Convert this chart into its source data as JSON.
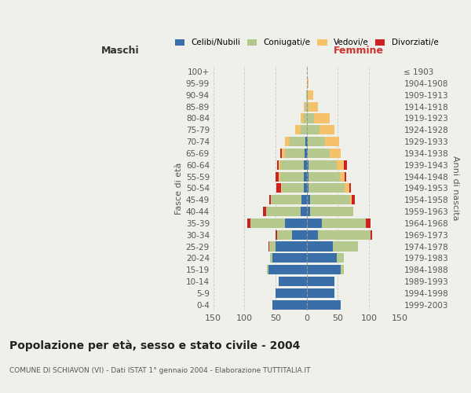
{
  "age_groups": [
    "0-4",
    "5-9",
    "10-14",
    "15-19",
    "20-24",
    "25-29",
    "30-34",
    "35-39",
    "40-44",
    "45-49",
    "50-54",
    "55-59",
    "60-64",
    "65-69",
    "70-74",
    "75-79",
    "80-84",
    "85-89",
    "90-94",
    "95-99",
    "100+"
  ],
  "birth_years": [
    "1999-2003",
    "1994-1998",
    "1989-1993",
    "1984-1988",
    "1979-1983",
    "1974-1978",
    "1969-1973",
    "1964-1968",
    "1959-1963",
    "1954-1958",
    "1949-1953",
    "1944-1948",
    "1939-1943",
    "1934-1938",
    "1929-1933",
    "1924-1928",
    "1919-1923",
    "1914-1918",
    "1909-1913",
    "1904-1908",
    "≤ 1903"
  ],
  "maschi": {
    "celibi": [
      55,
      50,
      45,
      62,
      55,
      50,
      23,
      35,
      10,
      8,
      5,
      5,
      4,
      3,
      2,
      0,
      0,
      0,
      0,
      0,
      0
    ],
    "coniugati": [
      0,
      0,
      0,
      2,
      4,
      10,
      25,
      55,
      55,
      50,
      35,
      38,
      38,
      32,
      25,
      10,
      5,
      2,
      1,
      0,
      0
    ],
    "vedovi": [
      0,
      0,
      0,
      0,
      0,
      0,
      0,
      0,
      0,
      0,
      1,
      2,
      3,
      5,
      8,
      8,
      5,
      2,
      0,
      0,
      0
    ],
    "divorziati": [
      0,
      0,
      0,
      0,
      0,
      1,
      2,
      5,
      5,
      2,
      8,
      5,
      2,
      3,
      0,
      0,
      0,
      0,
      0,
      0,
      0
    ]
  },
  "femmine": {
    "nubili": [
      55,
      45,
      45,
      55,
      48,
      42,
      18,
      25,
      5,
      5,
      3,
      3,
      3,
      2,
      2,
      0,
      0,
      0,
      0,
      0,
      0
    ],
    "coniugate": [
      0,
      0,
      0,
      5,
      12,
      40,
      85,
      70,
      70,
      65,
      58,
      50,
      45,
      35,
      28,
      20,
      12,
      3,
      2,
      1,
      0
    ],
    "vedove": [
      0,
      0,
      0,
      0,
      0,
      0,
      0,
      0,
      0,
      2,
      8,
      8,
      12,
      18,
      22,
      25,
      25,
      15,
      8,
      2,
      0
    ],
    "divorziate": [
      0,
      0,
      0,
      0,
      0,
      0,
      2,
      8,
      0,
      5,
      2,
      2,
      5,
      0,
      0,
      0,
      0,
      0,
      0,
      0,
      0
    ]
  },
  "colors": {
    "celibi": "#3a6ea8",
    "coniugati": "#b5c98e",
    "vedovi": "#f5c26b",
    "divorziati": "#cc2222"
  },
  "xlim": 150,
  "title": "Popolazione per età, sesso e stato civile - 2004",
  "subtitle": "COMUNE DI SCHIAVON (VI) - Dati ISTAT 1° gennaio 2004 - Elaborazione TUTTITALIA.IT",
  "ylabel_left": "Fasce di età",
  "ylabel_right": "Anni di nascita",
  "xlabel_left": "Maschi",
  "xlabel_right": "Femmine",
  "bg_color": "#f0f0eb",
  "grid_color": "#cccccc"
}
